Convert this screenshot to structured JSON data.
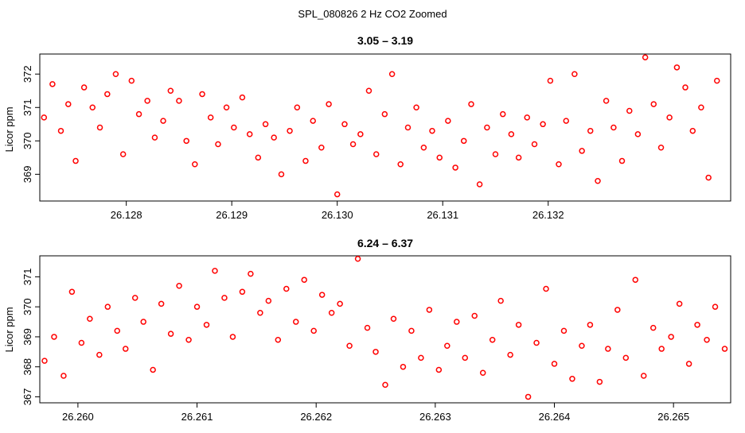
{
  "figure_title": "SPL_080826  2 Hz CO2 Zoomed",
  "chart_data": [
    {
      "type": "scatter",
      "title": "3.05 – 3.19",
      "xlabel": "",
      "ylabel": "Licor ppm",
      "xlim": [
        26.12718,
        26.13373
      ],
      "ylim": [
        368.2,
        372.6
      ],
      "x_ticks": [
        26.128,
        26.129,
        26.13,
        26.131,
        26.132
      ],
      "x_tick_labels": [
        "26.128",
        "26.129",
        "26.130",
        "26.131",
        "26.132"
      ],
      "y_ticks": [
        369,
        370,
        371,
        372
      ],
      "y_tick_labels": [
        "369",
        "370",
        "371",
        "372"
      ],
      "marker": "open circle",
      "color": "#ff0000",
      "series": [
        {
          "x": [
            26.12722,
            26.1273,
            26.12738,
            26.12745,
            26.12752,
            26.1276,
            26.12768,
            26.12775,
            26.12782,
            26.1279,
            26.12797,
            26.12805,
            26.12812,
            26.1282,
            26.12827,
            26.12835,
            26.12842,
            26.1285,
            26.12857,
            26.12865,
            26.12872,
            26.1288,
            26.12887,
            26.12895,
            26.12902,
            26.1291,
            26.12917,
            26.12925,
            26.12932,
            26.1294,
            26.12947,
            26.12955,
            26.12962,
            26.1297,
            26.12977,
            26.12985,
            26.12992,
            26.13,
            26.13007,
            26.13015,
            26.13022,
            26.1303,
            26.13037,
            26.13045,
            26.13052,
            26.1306,
            26.13067,
            26.13075,
            26.13082,
            26.1309,
            26.13097,
            26.13105,
            26.13112,
            26.1312,
            26.13127,
            26.13135,
            26.13142,
            26.1315,
            26.13157,
            26.13165,
            26.13172,
            26.1318,
            26.13187,
            26.13195,
            26.13202,
            26.1321,
            26.13217,
            26.13225,
            26.13232,
            26.1324,
            26.13247,
            26.13255,
            26.13262,
            26.1327,
            26.13277,
            26.13285,
            26.13292,
            26.133,
            26.13307,
            26.13315,
            26.13322,
            26.1333,
            26.13337,
            26.13345,
            26.13352,
            26.1336
          ],
          "y": [
            370.7,
            371.7,
            370.3,
            371.1,
            369.4,
            371.6,
            371.0,
            370.4,
            371.4,
            372.0,
            369.6,
            371.8,
            370.8,
            371.2,
            370.1,
            370.6,
            371.5,
            371.2,
            370.0,
            369.3,
            371.4,
            370.7,
            369.9,
            371.0,
            370.4,
            371.3,
            370.2,
            369.5,
            370.5,
            370.1,
            369.0,
            370.3,
            371.0,
            369.4,
            370.6,
            369.8,
            371.1,
            368.4,
            370.5,
            369.9,
            370.2,
            371.5,
            369.6,
            370.8,
            372.0,
            369.3,
            370.4,
            371.0,
            369.8,
            370.3,
            369.5,
            370.6,
            369.2,
            370.0,
            371.1,
            368.7,
            370.4,
            369.6,
            370.8,
            370.2,
            369.5,
            370.7,
            369.9,
            370.5,
            371.8,
            369.3,
            370.6,
            372.0,
            369.7,
            370.3,
            368.8,
            371.2,
            370.4,
            369.4,
            370.9,
            370.2,
            372.5,
            371.1,
            369.8,
            370.7,
            372.2,
            371.6,
            370.3,
            371.0,
            368.9,
            371.8
          ]
        }
      ]
    },
    {
      "type": "scatter",
      "title": "6.24 – 6.37",
      "xlabel": "",
      "ylabel": "Licor ppm",
      "xlim": [
        26.25968,
        26.26548
      ],
      "ylim": [
        366.8,
        371.7
      ],
      "x_ticks": [
        26.26,
        26.261,
        26.262,
        26.263,
        26.264,
        26.265
      ],
      "x_tick_labels": [
        "26.260",
        "26.261",
        "26.262",
        "26.263",
        "26.264",
        "26.265"
      ],
      "y_ticks": [
        367,
        368,
        369,
        370,
        371
      ],
      "y_tick_labels": [
        "367",
        "368",
        "369",
        "370",
        "371"
      ],
      "marker": "open circle",
      "color": "#ff0000",
      "series": [
        {
          "x": [
            26.25972,
            26.2598,
            26.25988,
            26.25995,
            26.26003,
            26.2601,
            26.26018,
            26.26025,
            26.26033,
            26.2604,
            26.26048,
            26.26055,
            26.26063,
            26.2607,
            26.26078,
            26.26085,
            26.26093,
            26.261,
            26.26108,
            26.26115,
            26.26123,
            26.2613,
            26.26138,
            26.26145,
            26.26153,
            26.2616,
            26.26168,
            26.26175,
            26.26183,
            26.2619,
            26.26198,
            26.26205,
            26.26213,
            26.2622,
            26.26228,
            26.26235,
            26.26243,
            26.2625,
            26.26258,
            26.26265,
            26.26273,
            26.2628,
            26.26288,
            26.26295,
            26.26303,
            26.2631,
            26.26318,
            26.26325,
            26.26333,
            26.2634,
            26.26348,
            26.26355,
            26.26363,
            26.2637,
            26.26378,
            26.26385,
            26.26393,
            26.264,
            26.26408,
            26.26415,
            26.26423,
            26.2643,
            26.26438,
            26.26445,
            26.26453,
            26.2646,
            26.26468,
            26.26475,
            26.26483,
            26.2649,
            26.26498,
            26.26505,
            26.26513,
            26.2652,
            26.26528,
            26.26535,
            26.26543
          ],
          "y": [
            368.2,
            369.0,
            367.7,
            370.5,
            368.8,
            369.6,
            368.4,
            370.0,
            369.2,
            368.6,
            370.3,
            369.5,
            367.9,
            370.1,
            369.1,
            370.7,
            368.9,
            370.0,
            369.4,
            371.2,
            370.3,
            369.0,
            370.5,
            371.1,
            369.8,
            370.2,
            368.9,
            370.6,
            369.5,
            370.9,
            369.2,
            370.4,
            369.8,
            370.1,
            368.7,
            371.6,
            369.3,
            368.5,
            367.4,
            369.6,
            368.0,
            369.2,
            368.3,
            369.9,
            367.9,
            368.7,
            369.5,
            368.3,
            369.7,
            367.8,
            368.9,
            370.2,
            368.4,
            369.4,
            367.0,
            368.8,
            370.6,
            368.1,
            369.2,
            367.6,
            368.7,
            369.4,
            367.5,
            368.6,
            369.9,
            368.3,
            370.9,
            367.7,
            369.3,
            368.6,
            369.0,
            370.1,
            368.1,
            369.4,
            368.9,
            370.0,
            368.6
          ]
        }
      ]
    }
  ]
}
